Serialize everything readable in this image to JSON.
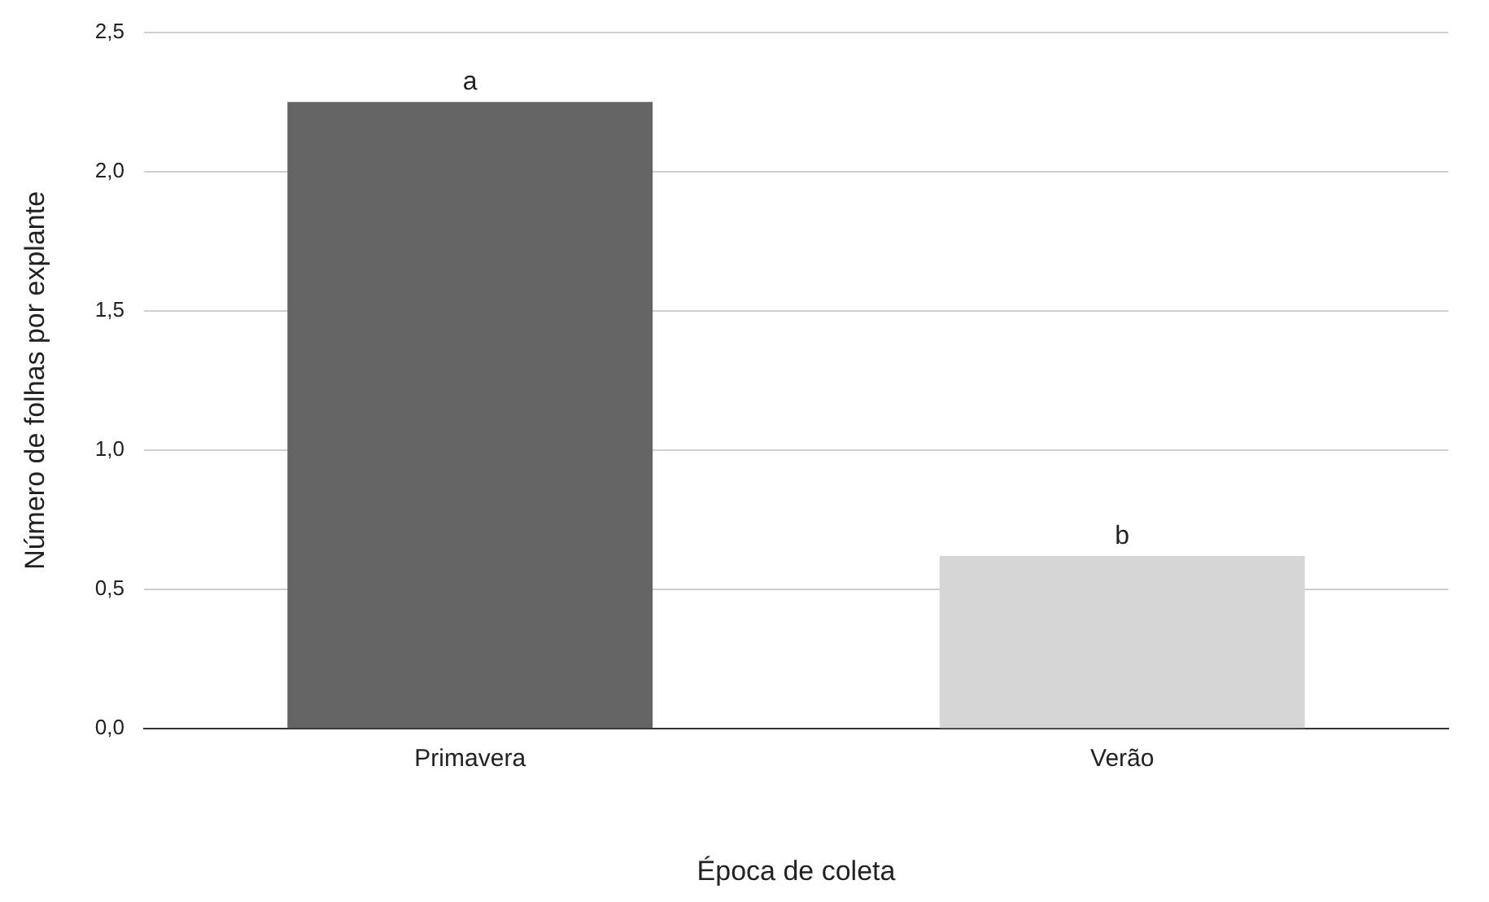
{
  "chart_data": {
    "type": "bar",
    "xlabel": "Época de coleta",
    "ylabel": "Número de folhas por explante",
    "categories": [
      "Primavera",
      "Verão"
    ],
    "values": [
      2.25,
      0.62
    ],
    "colors": [
      "#646464",
      "#d6d6d6"
    ],
    "ylim": [
      0,
      2.5
    ],
    "yticks": [
      {
        "value": 0,
        "label": "0,0"
      },
      {
        "value": 0.5,
        "label": "0,5"
      },
      {
        "value": 1,
        "label": "1,0"
      },
      {
        "value": 1.5,
        "label": "1,5"
      },
      {
        "value": 2,
        "label": "2,0"
      },
      {
        "value": 2.5,
        "label": "2,5"
      }
    ],
    "grid": "y",
    "legend": false,
    "annotations": [
      {
        "text": "a",
        "x": "Primavera",
        "y": 2.25
      },
      {
        "text": "b",
        "x": "Verão",
        "y": 0.62
      }
    ]
  }
}
